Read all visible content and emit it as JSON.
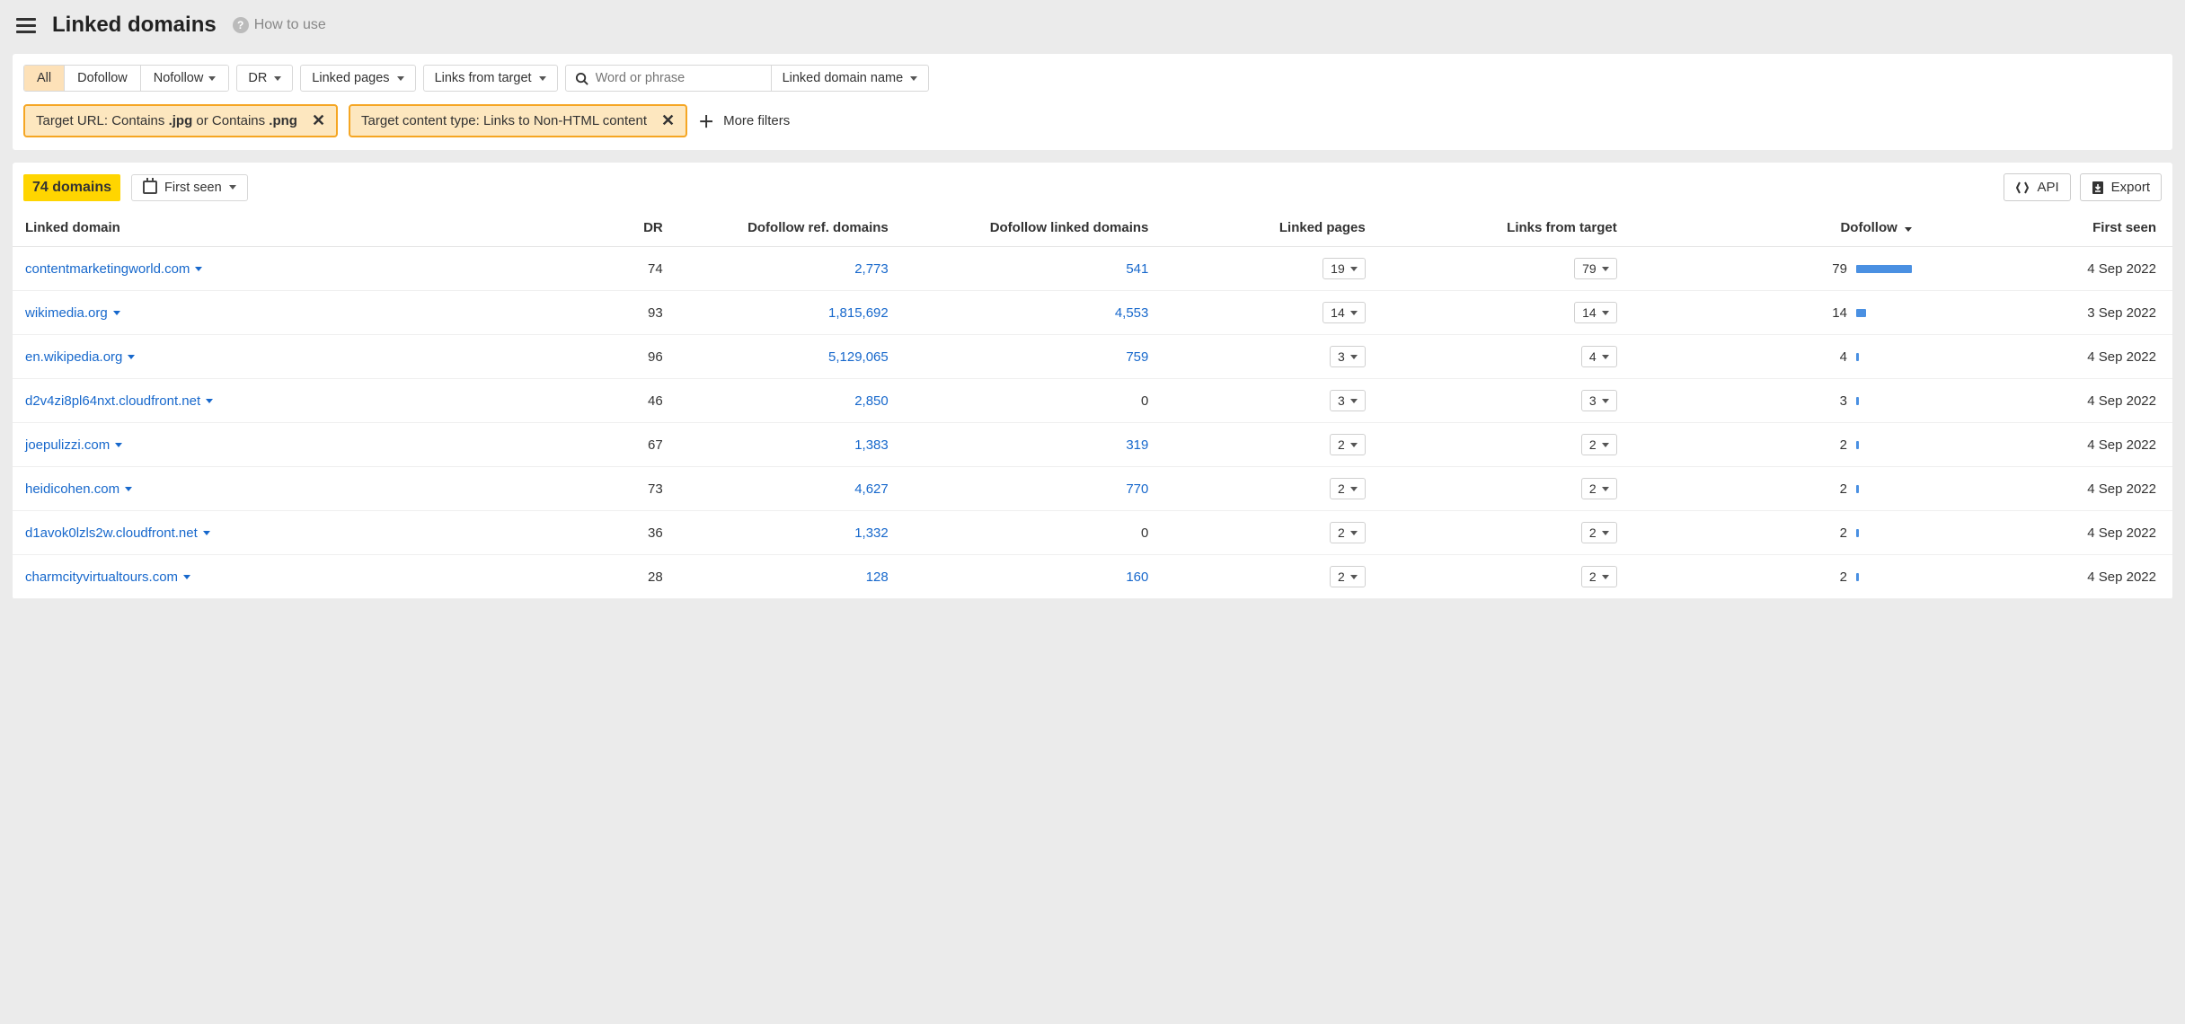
{
  "header": {
    "title": "Linked domains",
    "how_to_use": "How to use"
  },
  "filters": {
    "segments": {
      "all": "All",
      "dofollow": "Dofollow",
      "nofollow": "Nofollow"
    },
    "dr": "DR",
    "linked_pages": "Linked pages",
    "links_from_target": "Links from target",
    "search_placeholder": "Word or phrase",
    "scope": "Linked domain name",
    "chip1_prefix": "Target URL: Contains ",
    "chip1_b1": ".jpg",
    "chip1_mid": " or Contains ",
    "chip1_b2": ".png",
    "chip2": "Target content type: Links to Non-HTML content",
    "more": "More filters"
  },
  "results": {
    "count_label": "74 domains",
    "first_seen_btn": "First seen",
    "api_btn": "API",
    "export_btn": "Export"
  },
  "columns": {
    "domain": "Linked domain",
    "dr": "DR",
    "ref": "Dofollow ref. domains",
    "linked": "Dofollow linked domains",
    "pages": "Linked pages",
    "lft": "Links from target",
    "dofollow": "Dofollow",
    "first": "First seen"
  },
  "bar_max": 79,
  "rows": [
    {
      "domain": "contentmarketingworld.com",
      "dr": "74",
      "ref": "2,773",
      "ref_link": true,
      "linked": "541",
      "linked_link": true,
      "pages": "19",
      "lft": "79",
      "dofollow": "79",
      "bar": 79,
      "first": "4 Sep 2022"
    },
    {
      "domain": "wikimedia.org",
      "dr": "93",
      "ref": "1,815,692",
      "ref_link": true,
      "linked": "4,553",
      "linked_link": true,
      "pages": "14",
      "lft": "14",
      "dofollow": "14",
      "bar": 14,
      "first": "3 Sep 2022"
    },
    {
      "domain": "en.wikipedia.org",
      "dr": "96",
      "ref": "5,129,065",
      "ref_link": true,
      "linked": "759",
      "linked_link": true,
      "pages": "3",
      "lft": "4",
      "dofollow": "4",
      "bar": 4,
      "first": "4 Sep 2022"
    },
    {
      "domain": "d2v4zi8pl64nxt.cloudfront.net",
      "dr": "46",
      "ref": "2,850",
      "ref_link": true,
      "linked": "0",
      "linked_link": false,
      "pages": "3",
      "lft": "3",
      "dofollow": "3",
      "bar": 3,
      "first": "4 Sep 2022"
    },
    {
      "domain": "joepulizzi.com",
      "dr": "67",
      "ref": "1,383",
      "ref_link": true,
      "linked": "319",
      "linked_link": true,
      "pages": "2",
      "lft": "2",
      "dofollow": "2",
      "bar": 2,
      "first": "4 Sep 2022"
    },
    {
      "domain": "heidicohen.com",
      "dr": "73",
      "ref": "4,627",
      "ref_link": true,
      "linked": "770",
      "linked_link": true,
      "pages": "2",
      "lft": "2",
      "dofollow": "2",
      "bar": 2,
      "first": "4 Sep 2022"
    },
    {
      "domain": "d1avok0lzls2w.cloudfront.net",
      "dr": "36",
      "ref": "1,332",
      "ref_link": true,
      "linked": "0",
      "linked_link": false,
      "pages": "2",
      "lft": "2",
      "dofollow": "2",
      "bar": 2,
      "first": "4 Sep 2022"
    },
    {
      "domain": "charmcityvirtualtours.com",
      "dr": "28",
      "ref": "128",
      "ref_link": true,
      "linked": "160",
      "linked_link": true,
      "pages": "2",
      "lft": "2",
      "dofollow": "2",
      "bar": 2,
      "first": "4 Sep 2022"
    }
  ]
}
